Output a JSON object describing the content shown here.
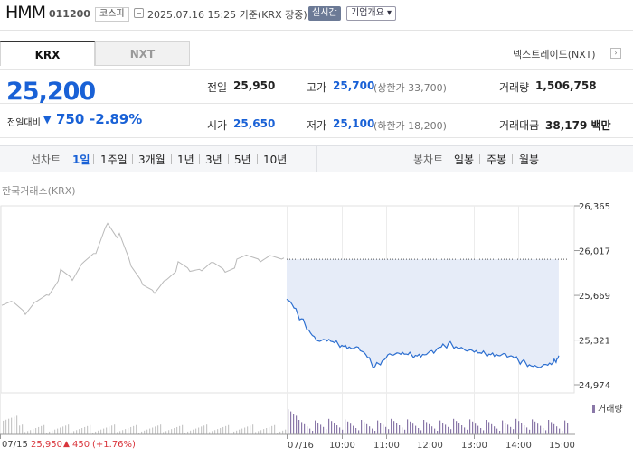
{
  "header": {
    "name": "HMM",
    "code": "011200",
    "market": "코스피",
    "datetime": "2025.07.16 15:25 기준(KRX 장중)",
    "realtime": "실시간",
    "company_info": "기업개요 ▾"
  },
  "tabs": [
    {
      "label": "KRX",
      "active": true
    },
    {
      "label": "NXT",
      "active": false
    }
  ],
  "nextrade_label": "넥스트레이드(NXT)",
  "quote": {
    "price": "25,200",
    "change_label": "전일대비",
    "change": "750",
    "change_pct": "-2.89%",
    "direction": "down",
    "color": "#1961d6"
  },
  "stats": {
    "prev_close": {
      "label": "전일",
      "value": "25,950"
    },
    "open": {
      "label": "시가",
      "value": "25,650"
    },
    "high": {
      "label": "고가",
      "value": "25,700",
      "sub": "(상한가 33,700)"
    },
    "low": {
      "label": "저가",
      "value": "25,100",
      "sub": "(하한가 18,200)"
    },
    "volume": {
      "label": "거래량",
      "value": "1,506,758"
    },
    "amount": {
      "label": "거래대금",
      "value": "38,179 백만"
    }
  },
  "periods": {
    "line_label": "선차트",
    "line_items": [
      "1일",
      "1주일",
      "3개월",
      "1년",
      "3년",
      "5년",
      "10년"
    ],
    "active": "1일",
    "candle_label": "봉차트",
    "candle_items": [
      "일봉",
      "주봉",
      "월봉"
    ]
  },
  "chart_data": {
    "type": "line",
    "exchange_label": "한국거래소(KRX)",
    "y_ticks": [
      "26,365",
      "26,017",
      "25,669",
      "25,321",
      "24,974"
    ],
    "y_tick_values": [
      26365,
      26017,
      25669,
      25321,
      24974
    ],
    "x_ticks": [
      "07/15",
      "07/16",
      "10:00",
      "11:00",
      "12:00",
      "13:00",
      "14:00",
      "15:00"
    ],
    "prev_close_ref": 25950,
    "series": [
      {
        "x": [
          "09:00",
          "09:20",
          "09:40",
          "10:00",
          "10:20",
          "10:40",
          "11:00",
          "11:20",
          "11:40",
          "12:00",
          "12:20",
          "12:40",
          "13:00",
          "13:20",
          "13:40",
          "14:00",
          "14:20",
          "14:40",
          "15:00",
          "15:10"
        ],
        "values": [
          25650,
          25480,
          25330,
          25300,
          25280,
          25250,
          25110,
          25220,
          25200,
          25210,
          25230,
          25290,
          25260,
          25210,
          25220,
          25200,
          25150,
          25120,
          25120,
          25200
        ]
      }
    ],
    "prev_day": {
      "date": "07/15",
      "close": "25,950",
      "change": "450",
      "change_pct": "(+1.76%)",
      "direction": "up",
      "color": "#d9343b"
    },
    "volume_legend": "거래량",
    "volume_color": "#8a78a8",
    "fill_color": "#e6ecf8",
    "line_color": "#2d6fd0"
  }
}
